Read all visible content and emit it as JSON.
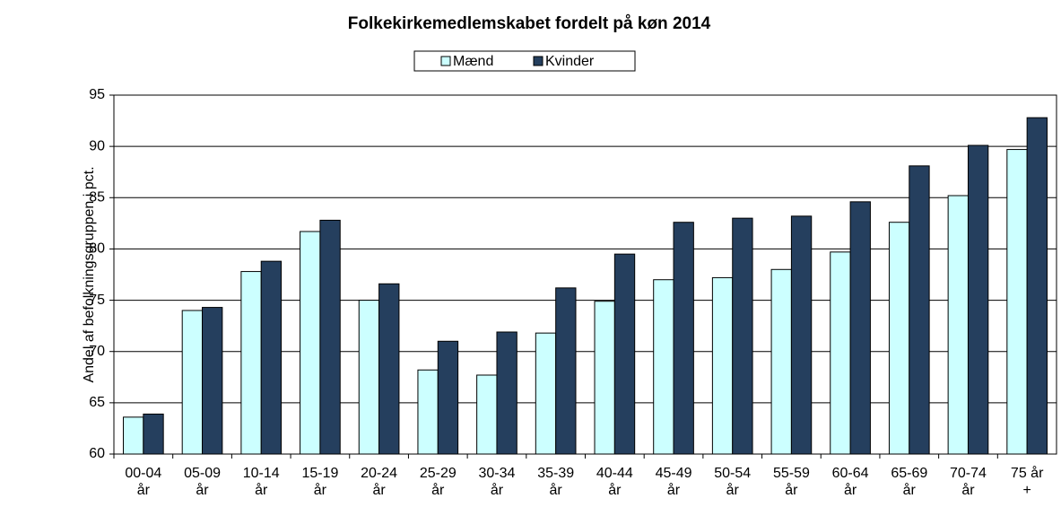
{
  "chart_data": {
    "type": "bar",
    "title": "Folkekirkemedlemskabet fordelt på køn 2014",
    "y_label": "Andel af befolkningsgruppen i pct.",
    "categories": [
      "00-04 år",
      "05-09 år",
      "10-14 år",
      "15-19 år",
      "20-24 år",
      "25-29 år",
      "30-34 år",
      "35-39 år",
      "40-44 år",
      "45-49 år",
      "50-54 år",
      "55-59 år",
      "60-64 år",
      "65-69 år",
      "70-74 år",
      "75 år +"
    ],
    "series": [
      {
        "name": "Mænd",
        "color": "#ccffff",
        "values": [
          63.6,
          74.0,
          77.8,
          81.7,
          75.0,
          68.2,
          67.7,
          71.8,
          74.9,
          77.0,
          77.2,
          78.0,
          79.7,
          82.6,
          85.2,
          89.7
        ]
      },
      {
        "name": "Kvinder",
        "color": "#253f5e",
        "values": [
          63.9,
          74.3,
          78.8,
          82.8,
          76.6,
          71.0,
          71.9,
          76.2,
          79.5,
          82.6,
          83.0,
          83.2,
          84.6,
          88.1,
          90.1,
          92.8
        ]
      }
    ],
    "ylim": [
      60,
      95
    ],
    "yticks": [
      60,
      65,
      70,
      75,
      80,
      85,
      90,
      95
    ],
    "grid": true,
    "legend": "top"
  }
}
